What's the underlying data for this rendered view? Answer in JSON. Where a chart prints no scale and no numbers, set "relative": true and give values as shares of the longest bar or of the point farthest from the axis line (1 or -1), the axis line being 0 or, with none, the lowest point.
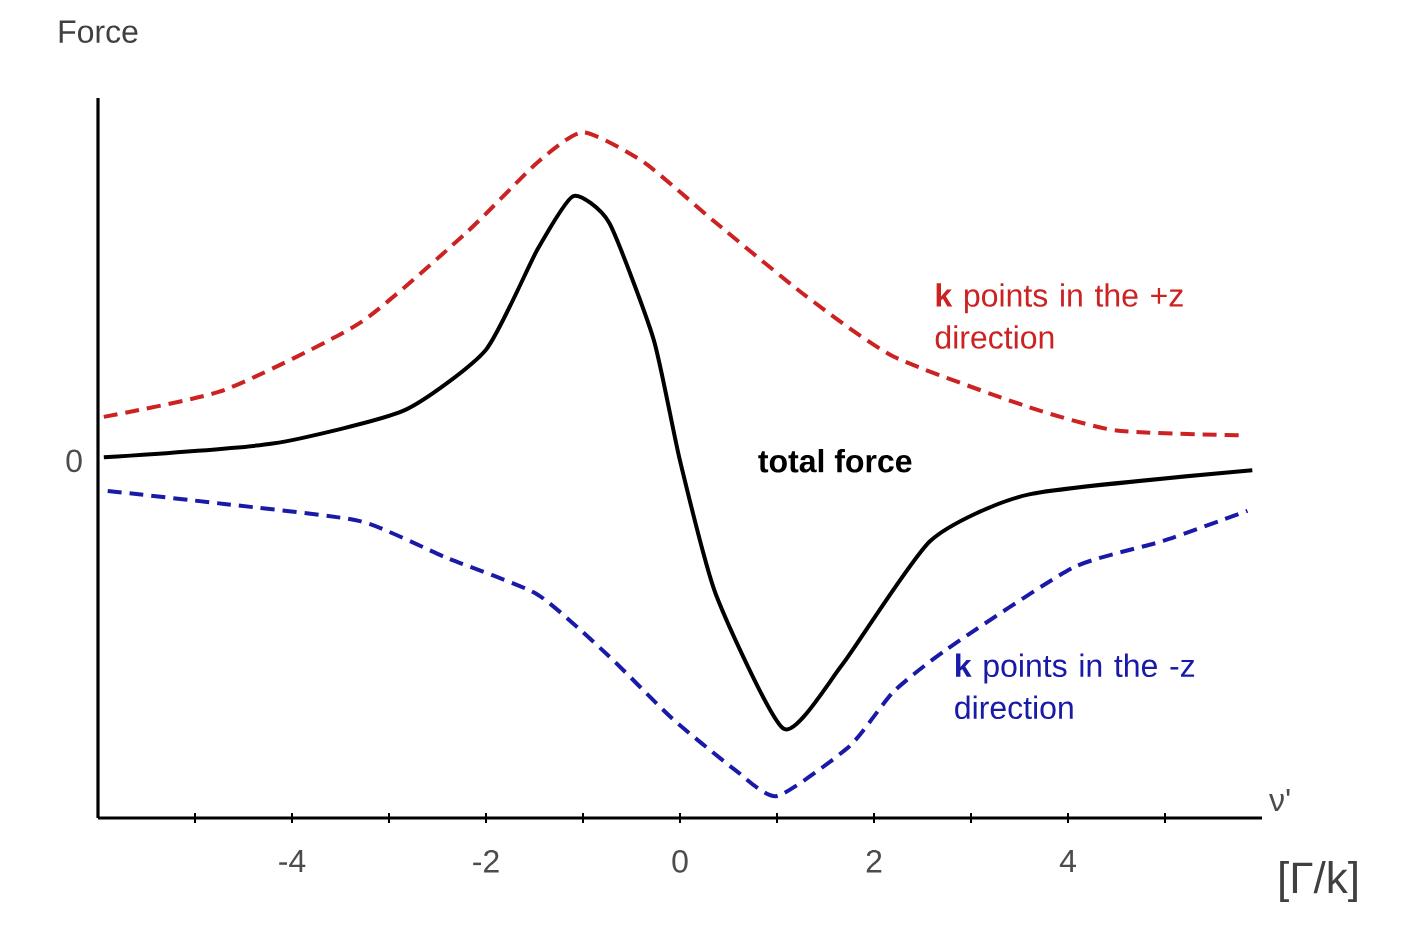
{
  "chart_data": {
    "type": "line",
    "relative": true,
    "ylabel": "Force",
    "xlabel": "[Γ/k]",
    "annotations": [
      "ν'",
      "0"
    ],
    "xlim": [
      -6,
      6
    ],
    "xticks": [
      {
        "value": -5,
        "label": null
      },
      -4,
      {
        "value": -3,
        "label": null
      },
      -2,
      {
        "value": -1,
        "label": null
      },
      0,
      {
        "value": 1,
        "label": null
      },
      2,
      {
        "value": 3,
        "label": null
      },
      4,
      {
        "value": 5,
        "label": null
      }
    ],
    "marker": "none",
    "series": [
      {
        "name": "**k** points in the +z direction",
        "color": "#cc2222",
        "line_style": "dashed",
        "x": [
          -5.94,
          -4.7,
          -3.3,
          -2.2,
          -1.47,
          -1.0,
          -0.37,
          0.37,
          1.3,
          2.2,
          3.6,
          4.5,
          5.76
        ],
        "values": [
          0.585,
          0.624,
          0.722,
          0.854,
          0.956,
          1.0,
          0.956,
          0.868,
          0.761,
          0.673,
          0.599,
          0.565,
          0.558
        ]
      },
      {
        "name": "**k** points in the -z direction",
        "color": "#1a1aa8",
        "line_style": "dashed",
        "x": [
          -5.9,
          -4.7,
          -3.3,
          -2.4,
          -1.47,
          -0.74,
          -0.08,
          0.56,
          1.0,
          1.75,
          2.2,
          2.76,
          4.05,
          4.98,
          5.85
        ],
        "values": [
          0.477,
          0.458,
          0.433,
          0.379,
          0.326,
          0.237,
          0.145,
          0.071,
          0.032,
          0.105,
          0.184,
          0.247,
          0.365,
          0.404,
          0.448
        ]
      },
      {
        "name": "total force",
        "color": "#000000",
        "line_style": "solid",
        "x": [
          -5.94,
          -4.2,
          -2.85,
          -2.0,
          -1.47,
          -1.1,
          -0.73,
          -0.27,
          0.0,
          0.37,
          1.07,
          1.67,
          2.58,
          3.6,
          5.9
        ],
        "values": [
          0.526,
          0.546,
          0.594,
          0.683,
          0.829,
          0.907,
          0.868,
          0.697,
          0.521,
          0.326,
          0.13,
          0.223,
          0.404,
          0.472,
          0.507
        ]
      }
    ]
  }
}
